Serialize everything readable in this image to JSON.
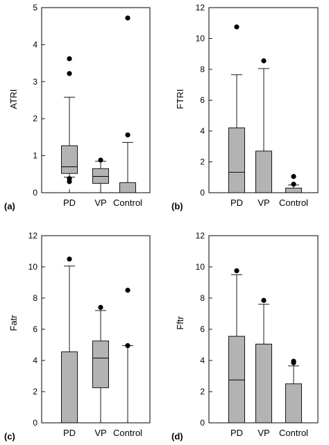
{
  "chart_data": [
    {
      "type": "box",
      "panel_label": "(a)",
      "ylabel": "ATRI",
      "ylim": [
        0,
        5
      ],
      "yticks": [
        0,
        1,
        2,
        3,
        4,
        5
      ],
      "categories": [
        "PD",
        "VP",
        "Control"
      ],
      "boxes": [
        {
          "category": "PD",
          "whisker_low": 0.42,
          "q1": 0.52,
          "median": 0.7,
          "q3": 1.27,
          "whisker_high": 2.58,
          "outliers": [
            0.38,
            0.3,
            3.22,
            3.62
          ]
        },
        {
          "category": "VP",
          "whisker_low": 0.0,
          "q1": 0.25,
          "median": 0.44,
          "q3": 0.65,
          "whisker_high": 0.85,
          "outliers": [
            0.88
          ]
        },
        {
          "category": "Control",
          "whisker_low": 0.0,
          "q1": 0.0,
          "median": 0.0,
          "q3": 0.27,
          "whisker_high": 1.36,
          "outliers": [
            1.56,
            4.72
          ]
        }
      ]
    },
    {
      "type": "box",
      "panel_label": "(b)",
      "ylabel": "FTRI",
      "ylim": [
        0,
        12
      ],
      "yticks": [
        0,
        2,
        4,
        6,
        8,
        10,
        12
      ],
      "categories": [
        "PD",
        "VP",
        "Control"
      ],
      "boxes": [
        {
          "category": "PD",
          "whisker_low": 0.0,
          "q1": 0.0,
          "median": 1.33,
          "q3": 4.2,
          "whisker_high": 7.65,
          "outliers": [
            10.75
          ]
        },
        {
          "category": "VP",
          "whisker_low": 0.0,
          "q1": 0.0,
          "median": 0.0,
          "q3": 2.7,
          "whisker_high": 8.05,
          "outliers": [
            8.55
          ]
        },
        {
          "category": "Control",
          "whisker_low": 0.0,
          "q1": 0.0,
          "median": 0.0,
          "q3": 0.3,
          "whisker_high": 0.5,
          "outliers": [
            0.55,
            1.05
          ]
        }
      ]
    },
    {
      "type": "box",
      "panel_label": "(c)",
      "ylabel": "Fatr",
      "ylim": [
        0,
        12
      ],
      "yticks": [
        0,
        2,
        4,
        6,
        8,
        10,
        12
      ],
      "categories": [
        "PD",
        "VP",
        "Control"
      ],
      "boxes": [
        {
          "category": "PD",
          "whisker_low": 0.0,
          "q1": 0.0,
          "median": 0.0,
          "q3": 4.55,
          "whisker_high": 10.05,
          "outliers": [
            10.5
          ]
        },
        {
          "category": "VP",
          "whisker_low": 0.0,
          "q1": 2.25,
          "median": 4.15,
          "q3": 5.25,
          "whisker_high": 7.2,
          "outliers": [
            7.4
          ]
        },
        {
          "category": "Control",
          "whisker_low": 0.0,
          "q1": 0.0,
          "median": 0.0,
          "q3": 0.0,
          "whisker_high": 4.95,
          "outliers": [
            4.95,
            8.5
          ]
        }
      ]
    },
    {
      "type": "box",
      "panel_label": "(d)",
      "ylabel": "Fftr",
      "ylim": [
        0,
        12
      ],
      "yticks": [
        0,
        2,
        4,
        6,
        8,
        10,
        12
      ],
      "categories": [
        "PD",
        "VP",
        "Control"
      ],
      "boxes": [
        {
          "category": "PD",
          "whisker_low": 0.0,
          "q1": 0.0,
          "median": 2.75,
          "q3": 5.55,
          "whisker_high": 9.5,
          "outliers": [
            9.75
          ]
        },
        {
          "category": "VP",
          "whisker_low": 0.0,
          "q1": 0.0,
          "median": 0.0,
          "q3": 5.05,
          "whisker_high": 7.6,
          "outliers": [
            7.85
          ]
        },
        {
          "category": "Control",
          "whisker_low": 0.0,
          "q1": 0.0,
          "median": 0.0,
          "q3": 2.5,
          "whisker_high": 3.65,
          "outliers": [
            3.85,
            3.95
          ]
        }
      ]
    }
  ]
}
